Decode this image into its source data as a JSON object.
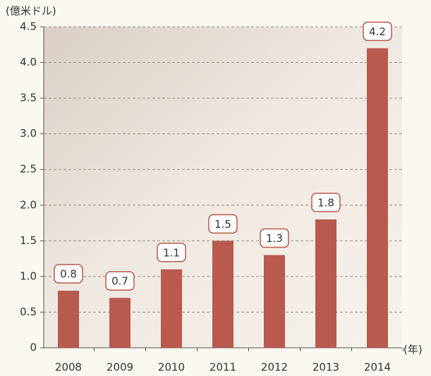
{
  "chart_data": {
    "type": "bar",
    "y_axis_label": "(億米ドル)",
    "x_axis_label": "(年)",
    "categories": [
      "2008",
      "2009",
      "2010",
      "2011",
      "2012",
      "2013",
      "2014"
    ],
    "values": [
      0.8,
      0.7,
      1.1,
      1.5,
      1.3,
      1.8,
      4.2
    ],
    "color": "#b85a4e",
    "ylim": [
      0,
      4.5
    ],
    "yticks": [
      0,
      0.5,
      {
        "value": 1,
        "label": "1.0"
      },
      1.5,
      {
        "value": 2,
        "label": "2.0"
      },
      2.5,
      {
        "value": 3,
        "label": "3.0"
      },
      3.5,
      {
        "value": 4,
        "label": "4.0"
      },
      4.5
    ],
    "grid": true
  }
}
